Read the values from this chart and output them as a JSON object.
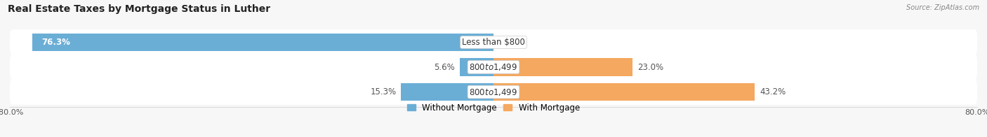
{
  "title": "Real Estate Taxes by Mortgage Status in Luther",
  "source": "Source: ZipAtlas.com",
  "rows": [
    {
      "label": "Less than $800",
      "without_mortgage": 76.3,
      "with_mortgage": 0.0
    },
    {
      "label": "$800 to $1,499",
      "without_mortgage": 5.6,
      "with_mortgage": 23.0
    },
    {
      "label": "$800 to $1,499",
      "without_mortgage": 15.3,
      "with_mortgage": 43.2
    }
  ],
  "xlim": [
    -80,
    80
  ],
  "color_without": "#6aaed6",
  "color_with": "#f4a860",
  "row_bg": "#ebebeb",
  "bar_height": 0.72,
  "legend_without": "Without Mortgage",
  "legend_with": "With Mortgage",
  "title_fontsize": 10,
  "label_fontsize": 8.5,
  "pct_fontsize": 8.5,
  "fig_bg": "#f7f7f7",
  "xtick_left": "-80.0%",
  "xtick_right": "80.0%"
}
